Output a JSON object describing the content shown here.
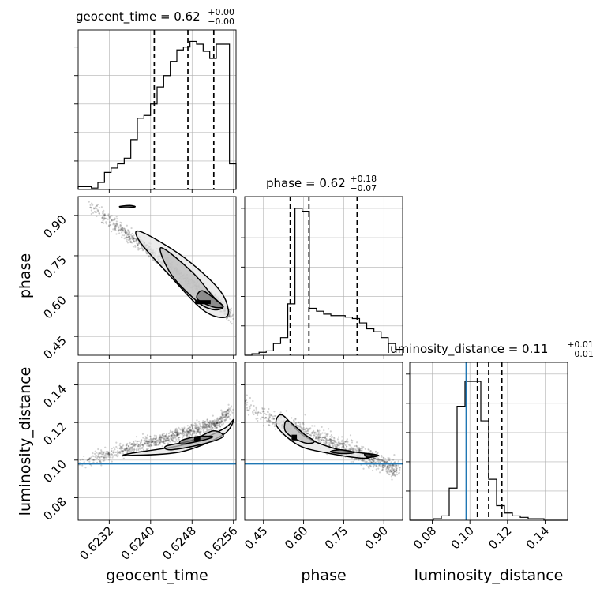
{
  "chart_data": {
    "type": "corner",
    "parameters": [
      "geocent_time",
      "phase",
      "luminosity_distance"
    ],
    "injection": {
      "luminosity_distance": 0.098
    },
    "diagonal": [
      {
        "parameter": "geocent_time",
        "title_main": "geocent_time = 0.62",
        "title_plus": "+0.00",
        "title_minus": "−0.00",
        "range": [
          0.6226,
          0.62565
        ],
        "ticks": [
          0.6232,
          0.624,
          0.6248,
          0.6256
        ],
        "tick_labels": [
          "0.6232",
          "0.6240",
          "0.6248",
          "0.6256"
        ],
        "quantile_lines": [
          0.62407,
          0.62472,
          0.62522
        ],
        "histogram": [
          0.02,
          0.02,
          0.01,
          0.05,
          0.12,
          0.15,
          0.18,
          0.22,
          0.35,
          0.5,
          0.52,
          0.6,
          0.72,
          0.8,
          0.9,
          0.98,
          1.0,
          1.04,
          1.02,
          0.97,
          0.92,
          1.02,
          1.02,
          0.18
        ],
        "hist_max": 1.12
      },
      {
        "parameter": "phase",
        "title_main": "phase = 0.62",
        "title_plus": "+0.18",
        "title_minus": "−0.07",
        "range": [
          0.38,
          0.97
        ],
        "ticks": [
          0.45,
          0.6,
          0.75,
          0.9
        ],
        "tick_labels": [
          "0.45",
          "0.60",
          "0.75",
          "0.90"
        ],
        "quantile_lines": [
          0.55,
          0.62,
          0.8
        ],
        "histogram": [
          0.0,
          0.01,
          0.02,
          0.03,
          0.08,
          0.12,
          0.35,
          1.0,
          0.98,
          0.32,
          0.3,
          0.28,
          0.27,
          0.27,
          0.26,
          0.25,
          0.22,
          0.18,
          0.16,
          0.12,
          0.08,
          0.04
        ],
        "hist_max": 1.08
      },
      {
        "parameter": "luminosity_distance",
        "title_main": "luminosity_distance = 0.11",
        "title_plus": "+0.01",
        "title_minus": "−0.01",
        "range": [
          0.068,
          0.152
        ],
        "ticks": [
          0.08,
          0.1,
          0.12,
          0.14
        ],
        "tick_labels": [
          "0.08",
          "0.10",
          "0.12",
          "0.14"
        ],
        "quantile_lines": [
          0.104,
          0.11,
          0.117
        ],
        "histogram": [
          0.0,
          0.0,
          0.0,
          0.01,
          0.03,
          0.22,
          0.78,
          0.95,
          0.95,
          0.68,
          0.28,
          0.1,
          0.05,
          0.03,
          0.02,
          0.01,
          0.01,
          0.0,
          0.0,
          0.0
        ],
        "hist_max": 1.08
      }
    ],
    "pairs": [
      {
        "x": "geocent_time",
        "y": "phase",
        "trend": "negative, curving down at high geocent_time"
      },
      {
        "x": "geocent_time",
        "y": "luminosity_distance",
        "trend": "positive, rising steeply at high geocent_time"
      },
      {
        "x": "phase",
        "y": "luminosity_distance",
        "trend": "negative"
      }
    ],
    "axis_labels": {
      "x": [
        "geocent_time",
        "phase",
        "luminosity_distance"
      ],
      "y": [
        "phase",
        "luminosity_distance"
      ]
    },
    "grid": true,
    "colors": {
      "line": "#000000",
      "injection": "#1f77b4",
      "grid": "#b0b0b0",
      "density": "#000000"
    }
  }
}
